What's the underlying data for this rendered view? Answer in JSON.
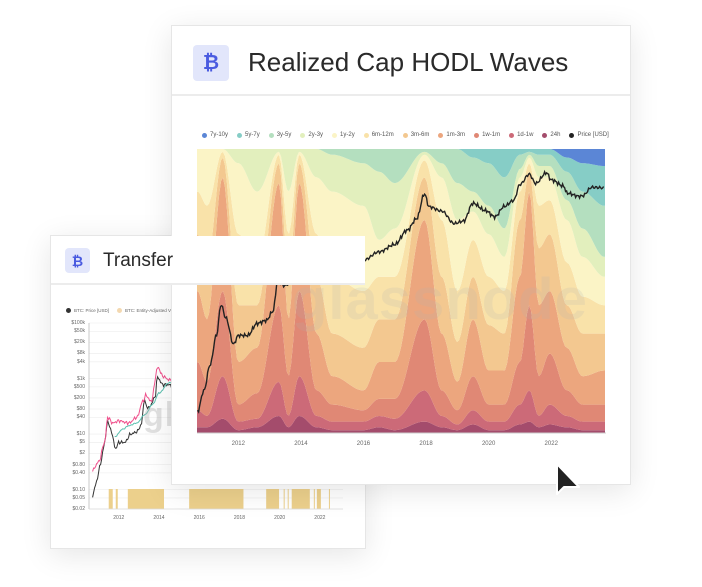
{
  "back_card": {
    "title": "Transfer",
    "icon": "bitcoin-icon",
    "icon_glyph": "₿",
    "watermark": "gl"
  },
  "front_card": {
    "title": "Realized Cap HODL Waves",
    "icon": "bitcoin-icon",
    "icon_glyph": "₿",
    "watermark": "glassnode"
  },
  "colors": {
    "accent": "#4a5be0",
    "icon_bg": "#e2e6fb",
    "price_line": "#222222"
  },
  "chart_data": [
    {
      "type": "area",
      "stacked": true,
      "title": "Realized Cap HODL Waves",
      "ylim": [
        0,
        100
      ],
      "xlim": [
        2010.68,
        2023.75
      ],
      "xticks": [
        "2012",
        "2014",
        "2016",
        "2018",
        "2020",
        "2022"
      ],
      "grid": false,
      "legend": "top",
      "x": [
        2010.7,
        2011.0,
        2011.5,
        2012.0,
        2012.6,
        2013.3,
        2013.6,
        2013.95,
        2014.5,
        2015.0,
        2016.0,
        2016.5,
        2017.0,
        2017.95,
        2018.5,
        2019.0,
        2019.5,
        2020.0,
        2020.5,
        2021.0,
        2021.3,
        2021.6,
        2021.95,
        2022.5,
        2023.0,
        2023.7
      ],
      "series": [
        {
          "name": "7y-10y",
          "color": "#5b86d6",
          "values": [
            0,
            0,
            0,
            0,
            0,
            0,
            0,
            0,
            0,
            0,
            0,
            0,
            0,
            0,
            0,
            0,
            0,
            0,
            0,
            0,
            0,
            0,
            0,
            3,
            5,
            6
          ]
        },
        {
          "name": "5y-7y",
          "color": "#86cdc6",
          "values": [
            0,
            0,
            0,
            0,
            0,
            0,
            0,
            0,
            0,
            0,
            0,
            0,
            0,
            0,
            0,
            0,
            3,
            5,
            10,
            2,
            1,
            2,
            2,
            5,
            10,
            14
          ]
        },
        {
          "name": "3y-5y",
          "color": "#b4dfbf",
          "values": [
            0,
            0,
            0,
            0,
            0,
            0,
            0,
            0,
            0,
            2,
            5,
            8,
            12,
            1,
            5,
            12,
            12,
            15,
            18,
            5,
            1,
            4,
            4,
            10,
            13,
            18
          ]
        },
        {
          "name": "2y-3y",
          "color": "#e2efbd",
          "values": [
            0,
            0,
            0,
            5,
            15,
            1,
            15,
            1,
            10,
            13,
            15,
            24,
            16,
            1,
            5,
            13,
            7,
            10,
            10,
            3,
            1,
            4,
            4,
            7,
            10,
            7
          ]
        },
        {
          "name": "1y-2y",
          "color": "#fbf4c6",
          "values": [
            15,
            20,
            1,
            25,
            25,
            1,
            15,
            1,
            20,
            30,
            30,
            13,
            17,
            2,
            15,
            25,
            10,
            15,
            12,
            5,
            2,
            10,
            8,
            15,
            14,
            10
          ]
        },
        {
          "name": "6m-12m",
          "color": "#f9e2a9",
          "values": [
            15,
            20,
            2,
            25,
            15,
            3,
            15,
            3,
            15,
            20,
            20,
            15,
            15,
            6,
            20,
            18,
            13,
            17,
            15,
            10,
            3,
            15,
            12,
            15,
            13,
            10
          ]
        },
        {
          "name": "3m-6m",
          "color": "#f3c890",
          "values": [
            20,
            20,
            7,
            20,
            15,
            7,
            15,
            7,
            20,
            15,
            15,
            15,
            15,
            15,
            20,
            14,
            15,
            16,
            13,
            20,
            7,
            20,
            20,
            15,
            15,
            13
          ]
        },
        {
          "name": "1m-3m",
          "color": "#eca67e",
          "values": [
            25,
            22,
            40,
            15,
            16,
            43,
            20,
            38,
            20,
            10,
            7,
            13,
            13,
            35,
            20,
            10,
            20,
            12,
            12,
            30,
            40,
            25,
            22,
            15,
            10,
            12
          ]
        },
        {
          "name": "1w-1m",
          "color": "#e08875",
          "values": [
            17,
            12,
            30,
            6,
            9,
            27,
            14,
            30,
            9,
            6,
            4,
            6,
            7,
            25,
            9,
            5,
            12,
            6,
            6,
            15,
            30,
            14,
            18,
            9,
            6,
            6
          ]
        },
        {
          "name": "1d-1w",
          "color": "#cc6a78",
          "values": [
            6,
            4,
            15,
            3,
            3,
            12,
            4,
            14,
            4,
            3,
            3,
            4,
            4,
            11,
            4,
            2,
            5,
            3,
            3,
            7,
            11,
            4,
            7,
            4,
            3,
            3
          ]
        },
        {
          "name": "24h",
          "color": "#a44c6c",
          "values": [
            2,
            2,
            5,
            1,
            2,
            6,
            2,
            6,
            2,
            1,
            1,
            2,
            1,
            4,
            2,
            1,
            3,
            1,
            1,
            3,
            4,
            2,
            3,
            2,
            1,
            1
          ]
        }
      ],
      "price": {
        "name": "Price [USD]",
        "color": "#222222",
        "scale": "log",
        "ylim": [
          0.017,
          260000
        ],
        "x": [
          2010.7,
          2010.9,
          2011.1,
          2011.3,
          2011.45,
          2011.6,
          2011.85,
          2012.0,
          2012.3,
          2012.6,
          2012.9,
          2013.1,
          2013.3,
          2013.35,
          2013.5,
          2013.8,
          2013.92,
          2014.2,
          2014.5,
          2014.8,
          2015.0,
          2015.5,
          2016.0,
          2016.5,
          2017.0,
          2017.4,
          2017.7,
          2017.95,
          2018.1,
          2018.5,
          2018.9,
          2019.2,
          2019.5,
          2019.9,
          2020.2,
          2020.5,
          2020.8,
          2021.0,
          2021.3,
          2021.5,
          2021.85,
          2022.0,
          2022.4,
          2022.5,
          2022.9,
          2023.0,
          2023.3,
          2023.7
        ],
        "values": [
          0.06,
          0.2,
          0.9,
          5,
          30,
          14,
          3,
          5,
          5,
          10,
          12,
          20,
          200,
          100,
          90,
          200,
          1100,
          600,
          600,
          380,
          220,
          240,
          400,
          650,
          1000,
          2300,
          4500,
          19000,
          9000,
          7000,
          3400,
          3900,
          11000,
          7200,
          5000,
          9200,
          13000,
          33000,
          60000,
          35000,
          65000,
          43000,
          30000,
          20000,
          16500,
          17000,
          28000,
          27000
        ]
      }
    },
    {
      "type": "line",
      "title": "Transfer",
      "scale": "log",
      "ylim": [
        0.02,
        100000
      ],
      "xlim": [
        2010.52,
        2023.15
      ],
      "xticks": [
        "2012",
        "2014",
        "2016",
        "2018",
        "2020",
        "2022"
      ],
      "yticks": [
        "$100k",
        "$50k",
        "$20k",
        "$8k",
        "$4k",
        "$1k",
        "$500",
        "$200",
        "$80",
        "$40",
        "$10",
        "$5",
        "$2",
        "$0.80",
        "$0.40",
        "$0.10",
        "$0.05",
        "$0.02"
      ],
      "ytick_values": [
        100000,
        50000,
        20000,
        8000,
        4000,
        1000,
        500,
        200,
        80,
        40,
        10,
        5,
        2,
        0.8,
        0.4,
        0.1,
        0.05,
        0.02
      ],
      "legend": "top-left",
      "legend_entries": [
        "BTC: Price [USD]",
        "BTC: Entity-Adjusted Volume (To"
      ],
      "series": [
        {
          "name": "BTC: Price [USD]",
          "color": "#333333",
          "x": [
            2010.7,
            2010.9,
            2011.1,
            2011.3,
            2011.45,
            2011.6,
            2011.85,
            2012.0,
            2012.3,
            2012.6,
            2012.9,
            2013.1,
            2013.3,
            2013.35,
            2013.5,
            2013.8,
            2013.92,
            2014.2,
            2014.5,
            2014.8,
            2015.0
          ],
          "values": [
            0.06,
            0.2,
            0.9,
            5,
            30,
            14,
            3,
            5,
            5,
            10,
            12,
            20,
            200,
            100,
            90,
            200,
            1100,
            600,
            600,
            380,
            220
          ]
        },
        {
          "name": "BTC: Entity-Adjusted Volume (To",
          "color": "#f0508c",
          "x": [
            2010.7,
            2011.0,
            2011.3,
            2011.45,
            2011.7,
            2012.0,
            2012.5,
            2012.9,
            2013.2,
            2013.35,
            2013.6,
            2013.95,
            2014.2,
            2014.5,
            2015.0
          ],
          "values": [
            0.5,
            1,
            5,
            40,
            25,
            30,
            25,
            40,
            150,
            250,
            150,
            2500,
            1200,
            900,
            700
          ]
        },
        {
          "color": "#5cc0b0",
          "x": [
            2011.8,
            2012.2,
            2012.5,
            2012.9,
            2013.3,
            2013.7,
            2014.0,
            2014.5,
            2015.0
          ],
          "values": [
            8,
            15,
            20,
            25,
            50,
            120,
            300,
            700,
            800
          ]
        }
      ],
      "highlight_periods": [
        [
          2011.5,
          2011.7
        ],
        [
          2011.85,
          2011.95
        ],
        [
          2012.45,
          2014.25
        ],
        [
          2015.5,
          2018.2
        ],
        [
          2019.33,
          2019.97
        ],
        [
          2020.2,
          2020.23
        ],
        [
          2020.4,
          2020.43
        ],
        [
          2020.6,
          2021.5
        ],
        [
          2021.7,
          2021.73
        ],
        [
          2021.85,
          2022.05
        ],
        [
          2022.45,
          2022.48
        ]
      ],
      "highlight_color": "#ecd08c"
    }
  ]
}
